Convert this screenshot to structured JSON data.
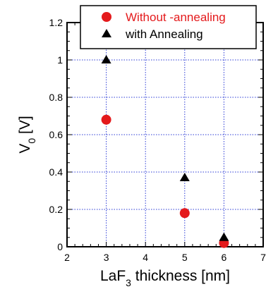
{
  "chart_data": {
    "type": "scatter",
    "title": "",
    "xlabel": {
      "main": "LaF",
      "sub": "3",
      "rest": " thickness [nm]"
    },
    "ylabel": {
      "main": "V",
      "sub": "0",
      "rest": " [V]"
    },
    "xlim": [
      2,
      7
    ],
    "ylim": [
      0,
      1.2
    ],
    "xticks": [
      2,
      3,
      4,
      5,
      6,
      7
    ],
    "yticks": [
      0,
      0.2,
      0.4,
      0.6,
      0.8,
      1,
      1.2
    ],
    "xtick_labels": [
      "2",
      "3",
      "4",
      "5",
      "6",
      "7"
    ],
    "ytick_labels": [
      "0",
      "0.2",
      "0.4",
      "0.6",
      "0.8",
      "1",
      "1.2"
    ],
    "grid": true,
    "legend_position": "top-right",
    "series": [
      {
        "name": "Without -annealing",
        "marker": "circle",
        "color": "#e41a1c",
        "label_color": "#e41a1c",
        "x": [
          3,
          5,
          6
        ],
        "y": [
          0.68,
          0.18,
          0.02
        ]
      },
      {
        "name": "with Annealing",
        "marker": "triangle",
        "color": "#000000",
        "label_color": "#000000",
        "x": [
          3,
          5,
          6
        ],
        "y": [
          1.0,
          0.37,
          0.05
        ]
      }
    ]
  }
}
